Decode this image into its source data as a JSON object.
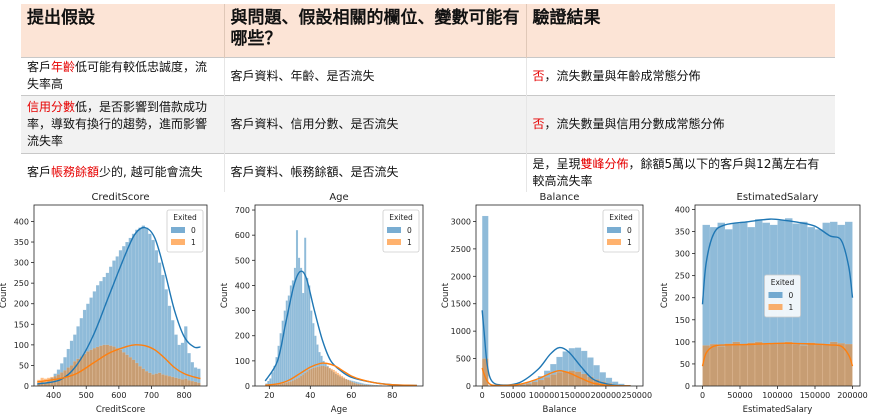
{
  "table": {
    "headers": [
      "提出假設",
      "與問題、假設相關的欄位、變數可能有哪些？",
      "驗證結果"
    ],
    "rows": [
      {
        "hyp": {
          "p1": "客戶",
          "red": "年齡",
          "p2": "低可能有較低忠誠度，流失率高"
        },
        "fields": "客戶資料、年齡、是否流失",
        "result": {
          "red": "否",
          "p2": "，流失數量與年齡成常態分佈",
          "p3": ""
        }
      },
      {
        "hyp": {
          "p1": "",
          "red": "信用分數",
          "p2": "低，是否影響到借款成功率，導致有換行的趨勢，進而影響流失率"
        },
        "fields": "客戶資料、信用分數、是否流失",
        "result": {
          "red": "否",
          "p2": "，流失數量與信用分數成常態分佈",
          "p3": ""
        }
      },
      {
        "hyp": {
          "p1": "客戶",
          "red": "帳務餘額",
          "p2": "少的, 越可能會流失"
        },
        "fields": "客戶資料、帳務餘額、是否流失",
        "result": {
          "p1": "是，呈現",
          "red": "雙峰分佈",
          "p2": "，餘額5萬以下的客戶與12萬左右有較高流失率"
        }
      }
    ]
  },
  "colors": {
    "series0": "#1f77b4",
    "series1": "#ff7f0e"
  },
  "chart_data": [
    {
      "type": "histogram",
      "title": "CreditScore",
      "xlabel": "CreditScore",
      "ylabel": "Count",
      "legend_title": "Exited",
      "legend_position": "top-right",
      "xlim": [
        340,
        870
      ],
      "ylim": [
        0,
        440
      ],
      "xticks": [
        400,
        500,
        600,
        700,
        800
      ],
      "yticks": [
        0,
        50,
        100,
        150,
        200,
        250,
        300,
        350,
        400
      ],
      "bin_start": 350,
      "bin_width": 10,
      "series": [
        {
          "name": "0",
          "values": [
            5,
            10,
            8,
            12,
            20,
            30,
            40,
            55,
            70,
            90,
            110,
            125,
            145,
            165,
            185,
            200,
            215,
            230,
            245,
            255,
            265,
            275,
            290,
            305,
            315,
            330,
            340,
            350,
            360,
            370,
            380,
            385,
            390,
            385,
            370,
            355,
            330,
            300,
            270,
            235,
            195,
            160,
            125,
            100,
            105,
            145,
            80,
            58,
            45,
            42
          ]
        },
        {
          "name": "1",
          "values": [
            15,
            20,
            18,
            20,
            22,
            24,
            28,
            33,
            38,
            45,
            50,
            60,
            66,
            72,
            78,
            84,
            88,
            92,
            95,
            98,
            100,
            100,
            98,
            96,
            92,
            88,
            82,
            76,
            70,
            64,
            56,
            48,
            42,
            36,
            32,
            28,
            30,
            32,
            28,
            26,
            24,
            22,
            20,
            18,
            16,
            18,
            14,
            12,
            10,
            8
          ]
        }
      ],
      "kde": [
        {
          "x": [
            350,
            420,
            470,
            520,
            570,
            620,
            650,
            680,
            710,
            740,
            770,
            800,
            830,
            850
          ],
          "y": [
            5,
            15,
            50,
            120,
            220,
            320,
            370,
            385,
            360,
            280,
            185,
            120,
            95,
            95
          ]
        },
        {
          "x": [
            350,
            420,
            470,
            520,
            570,
            620,
            650,
            680,
            710,
            740,
            770,
            800,
            830,
            850
          ],
          "y": [
            10,
            18,
            30,
            55,
            80,
            95,
            100,
            98,
            88,
            68,
            45,
            30,
            22,
            18
          ]
        }
      ]
    },
    {
      "type": "histogram",
      "title": "Age",
      "xlabel": "Age",
      "ylabel": "Count",
      "legend_title": "Exited",
      "legend_position": "top-right",
      "xlim": [
        13,
        95
      ],
      "ylim": [
        0,
        720
      ],
      "xticks": [
        20,
        40,
        60,
        80
      ],
      "yticks": [
        0,
        100,
        200,
        300,
        400,
        500,
        600,
        700
      ],
      "bin_start": 18,
      "bin_width": 1,
      "series": [
        {
          "name": "0",
          "values": [
            10,
            20,
            30,
            55,
            80,
            115,
            160,
            210,
            260,
            300,
            340,
            360,
            400,
            420,
            470,
            620,
            510,
            470,
            370,
            590,
            430,
            400,
            300,
            250,
            200,
            165,
            135,
            120,
            100,
            90,
            80,
            70,
            62,
            55,
            48,
            43,
            38,
            34,
            30,
            27,
            25,
            23,
            21,
            19,
            17,
            15,
            13,
            11,
            9,
            8,
            7,
            6,
            5,
            4,
            4,
            3,
            3,
            2,
            2,
            2,
            2,
            1,
            1,
            1,
            1,
            1,
            1,
            1,
            1,
            1,
            1,
            1,
            1,
            1,
            1
          ]
        },
        {
          "name": "1",
          "values": [
            2,
            2,
            3,
            3,
            4,
            5,
            6,
            8,
            10,
            12,
            14,
            16,
            18,
            22,
            26,
            30,
            34,
            40,
            46,
            52,
            58,
            64,
            68,
            72,
            74,
            76,
            78,
            80,
            80,
            78,
            76,
            72,
            68,
            64,
            58,
            52,
            46,
            40,
            34,
            28,
            24,
            20,
            16,
            13,
            10,
            8,
            7,
            6,
            5,
            4,
            4,
            3,
            3,
            2,
            2,
            2,
            1,
            1,
            1,
            1,
            1,
            1,
            1,
            1,
            1,
            0,
            0,
            0,
            0,
            0,
            0,
            0,
            0,
            0,
            0
          ]
        }
      ],
      "kde": [
        {
          "x": [
            18,
            24,
            28,
            32,
            35,
            38,
            42,
            46,
            50,
            55,
            60,
            70,
            80,
            92
          ],
          "y": [
            20,
            100,
            250,
            400,
            455,
            430,
            300,
            180,
            100,
            60,
            35,
            15,
            5,
            2
          ]
        },
        {
          "x": [
            18,
            25,
            30,
            35,
            40,
            45,
            48,
            52,
            56,
            60,
            65,
            72,
            80,
            92
          ],
          "y": [
            3,
            10,
            25,
            50,
            75,
            90,
            90,
            80,
            60,
            40,
            25,
            12,
            5,
            2
          ]
        }
      ]
    },
    {
      "type": "histogram",
      "title": "Balance",
      "xlabel": "Balance",
      "ylabel": "Count",
      "legend_title": "Exited",
      "legend_position": "top-right",
      "xlim": [
        -10000,
        260000
      ],
      "ylim": [
        0,
        3300
      ],
      "xticks": [
        0,
        50000,
        100000,
        150000,
        200000,
        250000
      ],
      "yticks": [
        0,
        500,
        1000,
        1500,
        2000,
        2500,
        3000
      ],
      "bin_start": 0,
      "bin_width": 10000,
      "series": [
        {
          "name": "0",
          "values": [
            3100,
            5,
            5,
            8,
            12,
            25,
            40,
            70,
            110,
            180,
            280,
            400,
            530,
            630,
            690,
            700,
            640,
            520,
            380,
            250,
            150,
            80,
            40,
            15,
            5,
            2
          ]
        },
        {
          "name": "1",
          "values": [
            500,
            2,
            3,
            5,
            8,
            15,
            25,
            45,
            75,
            110,
            160,
            210,
            250,
            270,
            280,
            260,
            220,
            170,
            120,
            80,
            50,
            25,
            12,
            5,
            2,
            1
          ]
        }
      ],
      "kde": [
        {
          "x": [
            0,
            3000,
            8000,
            15000,
            30000,
            60000,
            90000,
            110000,
            125000,
            140000,
            160000,
            180000,
            210000,
            240000
          ],
          "y": [
            1380,
            1000,
            400,
            100,
            20,
            60,
            300,
            580,
            700,
            620,
            350,
            120,
            20,
            3
          ]
        },
        {
          "x": [
            0,
            3000,
            8000,
            15000,
            30000,
            60000,
            90000,
            110000,
            125000,
            140000,
            160000,
            180000,
            210000,
            240000
          ],
          "y": [
            330,
            220,
            90,
            20,
            10,
            30,
            130,
            230,
            280,
            240,
            140,
            50,
            8,
            2
          ]
        }
      ]
    },
    {
      "type": "histogram",
      "title": "EstimatedSalary",
      "xlabel": "EstimatedSalary",
      "ylabel": "Count",
      "legend_title": "Exited",
      "legend_position": "center",
      "xlim": [
        -10000,
        210000
      ],
      "ylim": [
        0,
        410
      ],
      "xticks": [
        0,
        50000,
        100000,
        150000,
        200000
      ],
      "yticks": [
        0,
        50,
        100,
        150,
        200,
        250,
        300,
        350,
        400
      ],
      "bin_start": 0,
      "bin_width": 10000,
      "series": [
        {
          "name": "0",
          "values": [
            365,
            360,
            370,
            355,
            368,
            372,
            360,
            378,
            370,
            365,
            375,
            380,
            368,
            372,
            360,
            355,
            370,
            372,
            365,
            372
          ]
        },
        {
          "name": "1",
          "values": [
            92,
            95,
            90,
            96,
            100,
            95,
            98,
            100,
            94,
            96,
            98,
            100,
            95,
            92,
            98,
            96,
            95,
            100,
            97,
            95
          ]
        }
      ],
      "kde": [
        {
          "x": [
            0,
            5000,
            15000,
            30000,
            60000,
            90000,
            110000,
            130000,
            150000,
            170000,
            185000,
            195000,
            200000
          ],
          "y": [
            185,
            280,
            345,
            365,
            372,
            378,
            375,
            370,
            362,
            340,
            330,
            270,
            200
          ]
        },
        {
          "x": [
            0,
            5000,
            15000,
            30000,
            60000,
            90000,
            110000,
            130000,
            150000,
            170000,
            185000,
            195000,
            200000
          ],
          "y": [
            45,
            75,
            90,
            93,
            94,
            96,
            97,
            96,
            95,
            93,
            90,
            70,
            45
          ]
        }
      ]
    }
  ]
}
